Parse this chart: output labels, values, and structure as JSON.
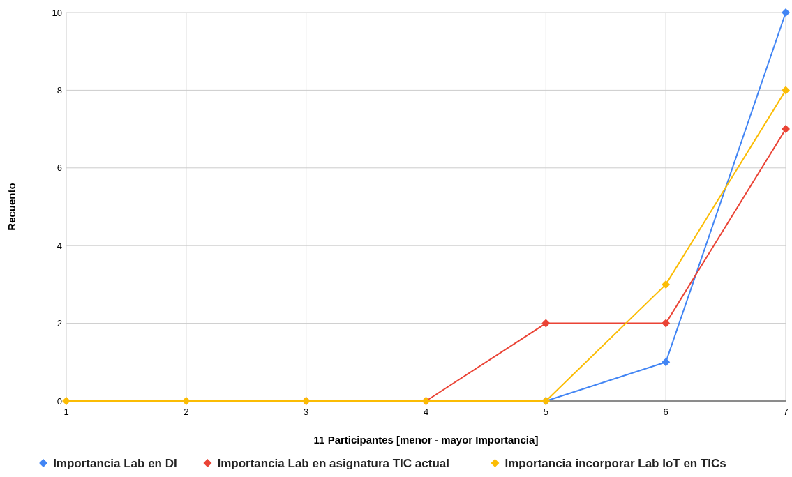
{
  "chart_data": {
    "type": "line",
    "xlabel": "11 Participantes [menor - mayor Importancia]",
    "ylabel": "Recuento",
    "x": [
      1,
      2,
      3,
      4,
      5,
      6,
      7
    ],
    "xlim": [
      1,
      7
    ],
    "xticks": [
      1,
      2,
      3,
      4,
      5,
      6,
      7
    ],
    "ylim": [
      0,
      10
    ],
    "yticks": [
      0,
      2,
      4,
      6,
      8,
      10
    ],
    "grid": true,
    "legend": "bottom",
    "marker": "diamond",
    "line_style": "solid",
    "series": [
      {
        "name": "Importancia Lab en DI",
        "color": "#4285f4",
        "values": [
          null,
          null,
          null,
          null,
          0,
          1,
          10
        ]
      },
      {
        "name": "Importancia Lab en asignatura TIC actual",
        "color": "#ea4335",
        "values": [
          null,
          null,
          0,
          0,
          2,
          2,
          7
        ]
      },
      {
        "name": "Importancia incorporar Lab IoT en TICs",
        "color": "#fbbc04",
        "values": [
          0,
          0,
          0,
          0,
          0,
          3,
          8
        ]
      }
    ]
  }
}
